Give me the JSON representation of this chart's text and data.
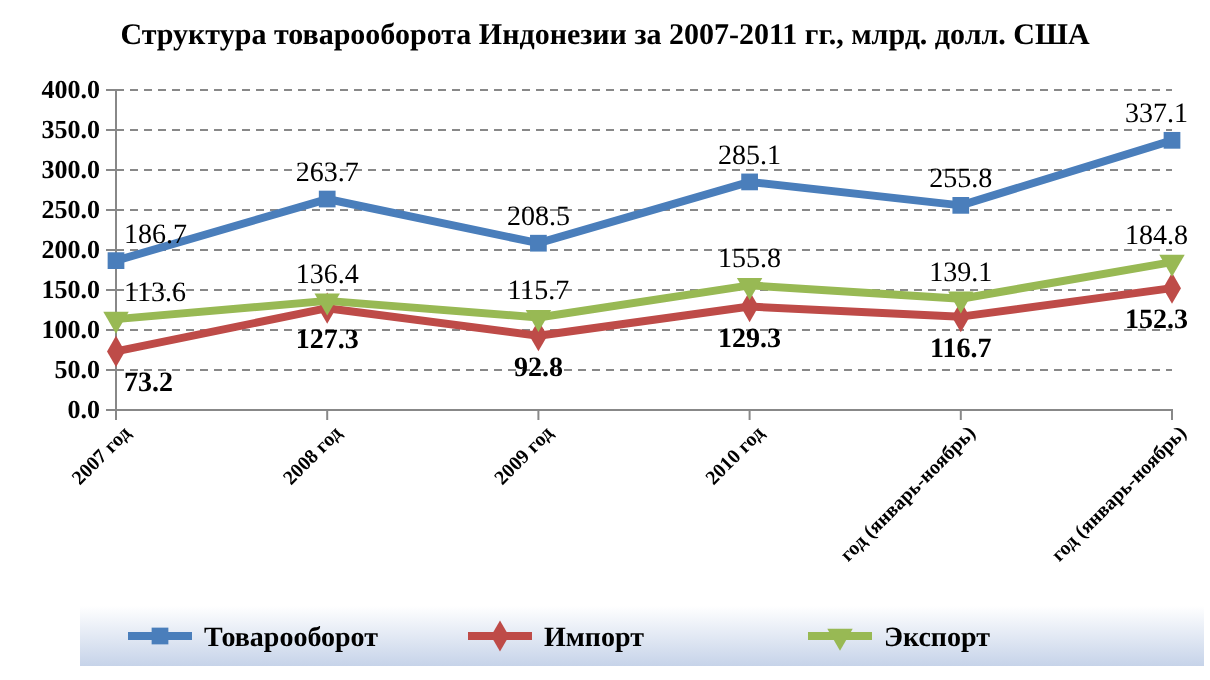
{
  "chart_data": {
    "type": "line",
    "title": "Структура товарооборота Индонезии за 2007-2011 гг., млрд. долл. США",
    "categories": [
      "2007 год",
      "2008 год",
      "2009 год",
      "2010 год",
      "год (январь-ноябрь)",
      "год (январь-ноябрь)"
    ],
    "series": [
      {
        "name": "Товарооборот",
        "color": "#4a7ebb",
        "marker": "square",
        "values": [
          186.7,
          263.7,
          208.5,
          285.1,
          255.8,
          337.1
        ]
      },
      {
        "name": "Импорт",
        "color": "#be4b48",
        "marker": "diamond",
        "values": [
          73.2,
          127.3,
          92.8,
          129.3,
          116.7,
          152.3
        ]
      },
      {
        "name": "Экспорт",
        "color": "#98b954",
        "marker": "triangle",
        "values": [
          113.6,
          136.4,
          115.7,
          155.8,
          139.1,
          184.8
        ]
      }
    ],
    "ylim": [
      0,
      400
    ],
    "yticks": [
      {
        "value": 0,
        "label": "0.0"
      },
      {
        "value": 50,
        "label": "50.0"
      },
      {
        "value": 100,
        "label": "100.0"
      },
      {
        "value": 150,
        "label": "150.0"
      },
      {
        "value": 200,
        "label": "200.0"
      },
      {
        "value": 250,
        "label": "250.0"
      },
      {
        "value": 300,
        "label": "300.0"
      },
      {
        "value": 350,
        "label": "350.0"
      },
      {
        "value": 400,
        "label": "400.0"
      }
    ],
    "grid": "y",
    "legend": "bottom",
    "data_labels": true,
    "line_style": "solid"
  }
}
